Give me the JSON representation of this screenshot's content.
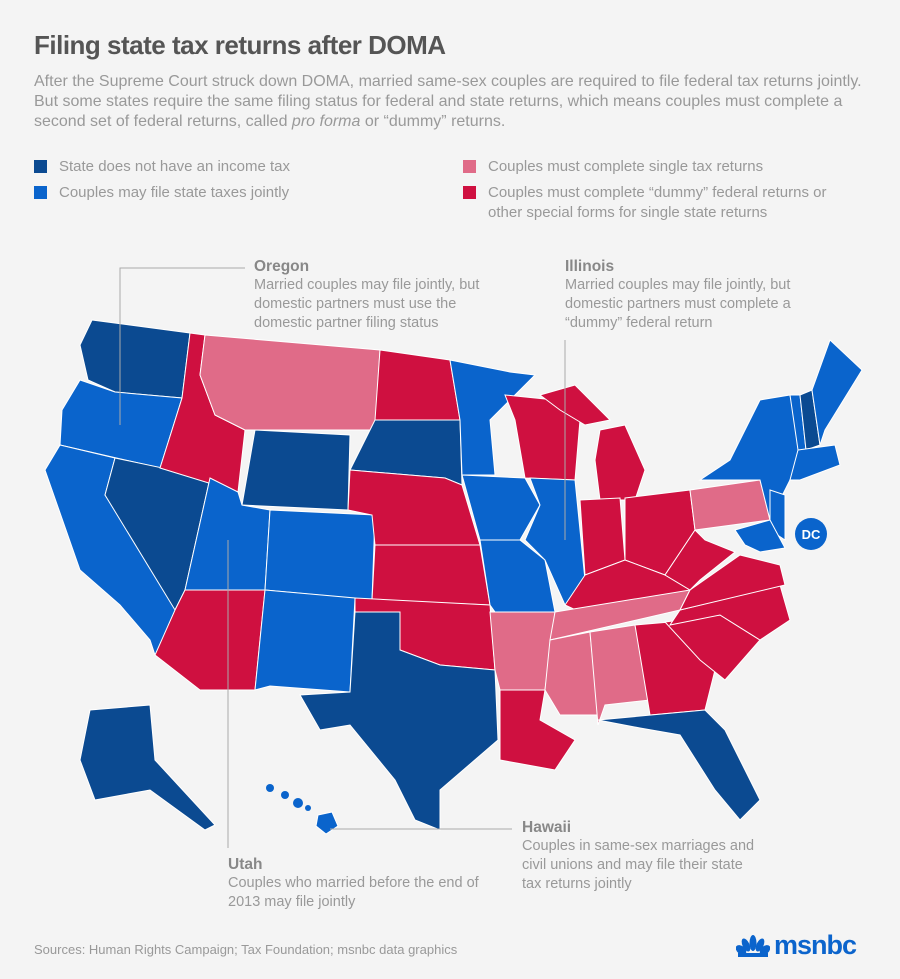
{
  "title": "Filing state tax returns after DOMA",
  "intro": {
    "before": "After the Supreme Court struck down DOMA, married same-sex couples are required to file federal tax returns jointly. But some states require the same filing status for federal and state returns, which means couples must complete a second set of federal returns, called ",
    "italic": "pro forma",
    "after": " or “dummy” returns."
  },
  "legend": [
    {
      "label": "State does not have an income tax",
      "color": "#0b4a91"
    },
    {
      "label": "Couples may file state taxes jointly",
      "color": "#0a64cc"
    },
    {
      "label": "Couples must complete single tax returns",
      "color": "#e06b88"
    },
    {
      "label": "Couples must complete “dummy” federal returns or other special forms for single state returns",
      "color": "#cf1040"
    }
  ],
  "categories": {
    "WA": 0,
    "NV": 0,
    "WY": 0,
    "SD": 0,
    "TX": 0,
    "FL": 0,
    "AK": 0,
    "NH": 0,
    "OR": 1,
    "CA": 1,
    "UT": 1,
    "CO": 1,
    "NM": 1,
    "MN": 1,
    "IA": 1,
    "MO": 1,
    "IL": 1,
    "NY": 1,
    "NJ": 1,
    "MDDE": 1,
    "VT": 1,
    "ME": 1,
    "NEW_ENGLAND_S": 1,
    "HI": 1,
    "DC": 1,
    "MT": 2,
    "PA": 2,
    "AR": 2,
    "TN": 2,
    "MS": 2,
    "AL": 2,
    "ID": 3,
    "ND": 3,
    "NE": 3,
    "KS": 3,
    "OK": 3,
    "AZ": 3,
    "WI": 3,
    "MI": 3,
    "MIU": 3,
    "IN": 3,
    "OH": 3,
    "KY": 3,
    "WV": 3,
    "VA": 3,
    "NC": 3,
    "SC": 3,
    "GA": 3,
    "LA": 3
  },
  "dc_label": "DC",
  "callouts": {
    "oregon": {
      "title": "Oregon",
      "text": "Married couples may file jointly, but domestic partners must use the domestic partner filing status"
    },
    "illinois": {
      "title": "Illinois",
      "text": "Married couples may file jointly, but domestic partners must complete a “dummy” federal return"
    },
    "utah": {
      "title": "Utah",
      "text": "Couples who married before the end of 2013 may file jointly"
    },
    "hawaii": {
      "title": "Hawaii",
      "text": "Couples in same-sex marriages and civil unions and may file their state tax returns jointly"
    }
  },
  "sources": "Sources: Human Rights Campaign; Tax Foundation; msnbc data graphics",
  "logo": "msnbc"
}
